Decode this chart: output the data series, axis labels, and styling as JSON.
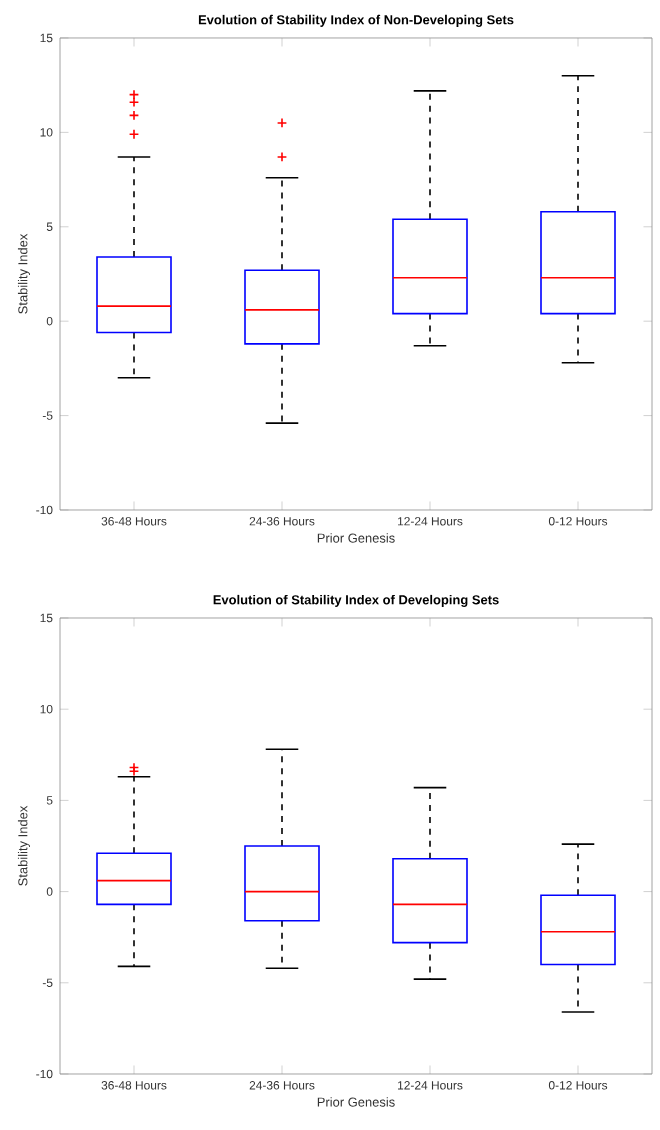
{
  "chart_data": [
    {
      "type": "box",
      "title": "Evolution of Stability Index of Non-Developing Sets",
      "xlabel": "Prior Genesis",
      "ylabel": "Stability Index",
      "categories": [
        "36-48 Hours",
        "24-36 Hours",
        "12-24 Hours",
        "0-12 Hours"
      ],
      "ylim": [
        -10,
        15
      ],
      "yticks": [
        -10,
        -5,
        0,
        5,
        10,
        15
      ],
      "marker": "cross",
      "series": [
        {
          "color": "#0000ff",
          "boxes": [
            {
              "low": -3.0,
              "q1": -0.6,
              "median": 0.8,
              "q3": 3.4,
              "high": 8.7,
              "outliers": [
                12.0,
                11.6,
                10.9,
                9.9
              ]
            },
            {
              "low": -5.4,
              "q1": -1.2,
              "median": 0.6,
              "q3": 2.7,
              "high": 7.6,
              "outliers": [
                10.5,
                8.7
              ]
            },
            {
              "low": -1.3,
              "q1": 0.4,
              "median": 2.3,
              "q3": 5.4,
              "high": 12.2
            },
            {
              "low": -2.2,
              "q1": 0.4,
              "median": 2.3,
              "q3": 5.8,
              "high": 13.0
            }
          ]
        }
      ]
    },
    {
      "type": "box",
      "title": "Evolution of Stability Index of Developing Sets",
      "xlabel": "Prior Genesis",
      "ylabel": "Stability Index",
      "categories": [
        "36-48 Hours",
        "24-36 Hours",
        "12-24 Hours",
        "0-12 Hours"
      ],
      "ylim": [
        -10,
        15
      ],
      "yticks": [
        -10,
        -5,
        0,
        5,
        10,
        15
      ],
      "marker": "cross",
      "series": [
        {
          "color": "#0000ff",
          "boxes": [
            {
              "low": -4.1,
              "q1": -0.7,
              "median": 0.6,
              "q3": 2.1,
              "high": 6.3,
              "outliers": [
                6.8,
                6.6
              ]
            },
            {
              "low": -4.2,
              "q1": -1.6,
              "median": 0.0,
              "q3": 2.5,
              "high": 7.8
            },
            {
              "low": -4.8,
              "q1": -2.8,
              "median": -0.7,
              "q3": 1.8,
              "high": 5.7
            },
            {
              "low": -6.6,
              "q1": -4.0,
              "median": -2.2,
              "q3": -0.2,
              "high": 2.6
            }
          ]
        }
      ]
    }
  ]
}
